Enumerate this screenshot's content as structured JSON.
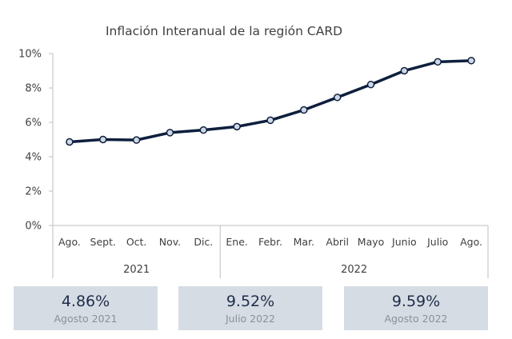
{
  "chart_data": {
    "type": "line",
    "title": "Inflación Interanual de la región CARD",
    "categories": [
      "Ago.",
      "Sept.",
      "Oct.",
      "Nov.",
      "Dic.",
      "Ene.",
      "Febr.",
      "Mar.",
      "Abril",
      "Mayo",
      "Junio",
      "Julio",
      "Ago."
    ],
    "year_groups": [
      {
        "label": "2021",
        "count": 5
      },
      {
        "label": "2022",
        "count": 8
      }
    ],
    "series": [
      {
        "values": [
          4.86,
          5.0,
          4.97,
          5.4,
          5.55,
          5.75,
          6.12,
          6.72,
          7.45,
          8.2,
          9.0,
          9.52,
          9.59
        ]
      }
    ],
    "ylim": [
      0,
      10
    ],
    "yticks": [
      "0%",
      "2%",
      "4%",
      "6%",
      "8%",
      "10%"
    ],
    "ytick_values": [
      0,
      2,
      4,
      6,
      8,
      10
    ],
    "grid": false,
    "colors": {
      "line": "#0e1f3d",
      "marker_fill": "#cfd8e8",
      "axis": "#bfbfbf"
    }
  },
  "stats": [
    {
      "value": "4.86%",
      "label": "Agosto 2021"
    },
    {
      "value": "9.52%",
      "label": "Julio 2022"
    },
    {
      "value": "9.59%",
      "label": "Agosto 2022"
    }
  ]
}
